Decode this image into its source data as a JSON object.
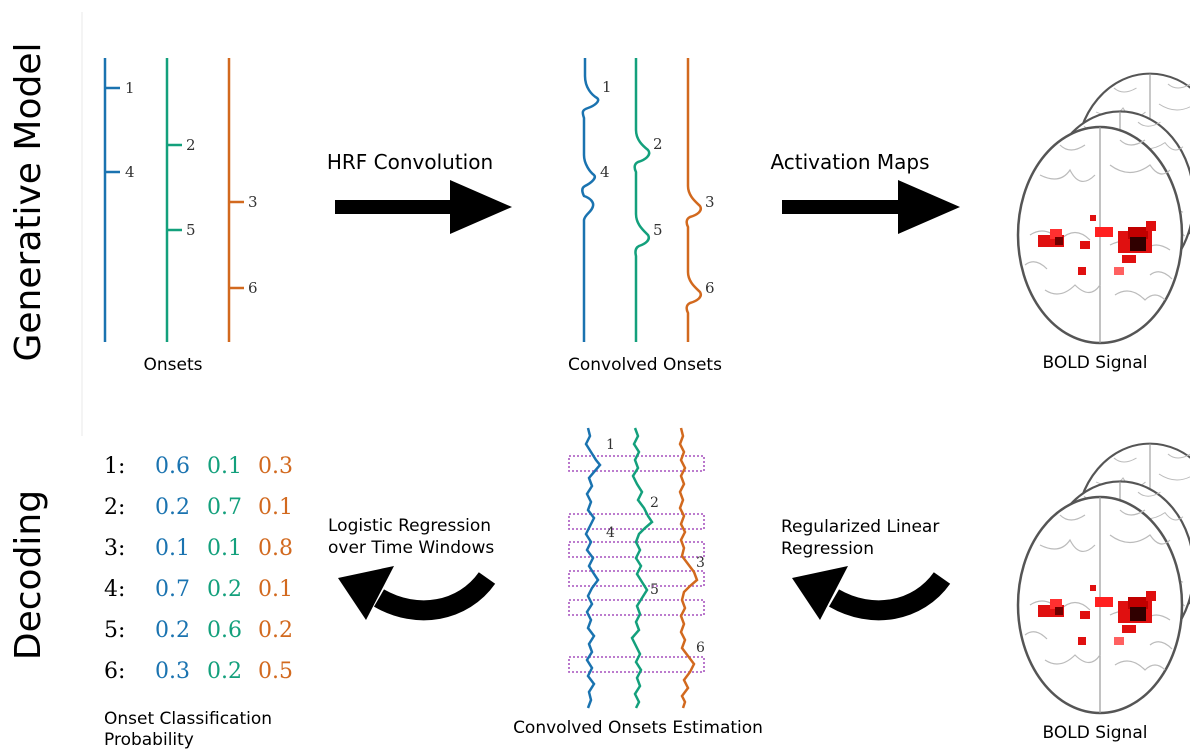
{
  "row_labels": {
    "generative": "Generative Model",
    "decoding": "Decoding"
  },
  "colors": {
    "blue": "#1a73b0",
    "green": "#13a07c",
    "orange": "#d2691e",
    "black": "#000000",
    "window": "#b36ac7"
  },
  "generative": {
    "onsets_label": "Onsets",
    "arrow1_label": "HRF Convolution",
    "convolved_label": "Convolved Onsets",
    "arrow2_label": "Activation Maps",
    "bold_label": "BOLD Signal",
    "onset_markers": [
      {
        "id": "1",
        "series": "blue"
      },
      {
        "id": "4",
        "series": "blue"
      },
      {
        "id": "2",
        "series": "green"
      },
      {
        "id": "5",
        "series": "green"
      },
      {
        "id": "3",
        "series": "orange"
      },
      {
        "id": "6",
        "series": "orange"
      }
    ]
  },
  "decoding": {
    "bold_label": "BOLD Signal",
    "arrow_right_label": [
      "Regularized Linear",
      "Regression"
    ],
    "estimation_label": "Convolved Onsets Estimation",
    "arrow_left_label": [
      "Logistic Regression",
      "over Time Windows"
    ],
    "window_labels": [
      "1",
      "2",
      "4",
      "3",
      "5",
      "6"
    ],
    "table_caption": [
      "Onset Classification",
      "Probability"
    ],
    "table": [
      {
        "row": "1:",
        "values": [
          "0.6",
          "0.1",
          "0.3"
        ]
      },
      {
        "row": "2:",
        "values": [
          "0.2",
          "0.7",
          "0.1"
        ]
      },
      {
        "row": "3:",
        "values": [
          "0.1",
          "0.1",
          "0.8"
        ]
      },
      {
        "row": "4:",
        "values": [
          "0.7",
          "0.2",
          "0.1"
        ]
      },
      {
        "row": "5:",
        "values": [
          "0.2",
          "0.6",
          "0.2"
        ]
      },
      {
        "row": "6:",
        "values": [
          "0.3",
          "0.2",
          "0.5"
        ]
      }
    ]
  }
}
